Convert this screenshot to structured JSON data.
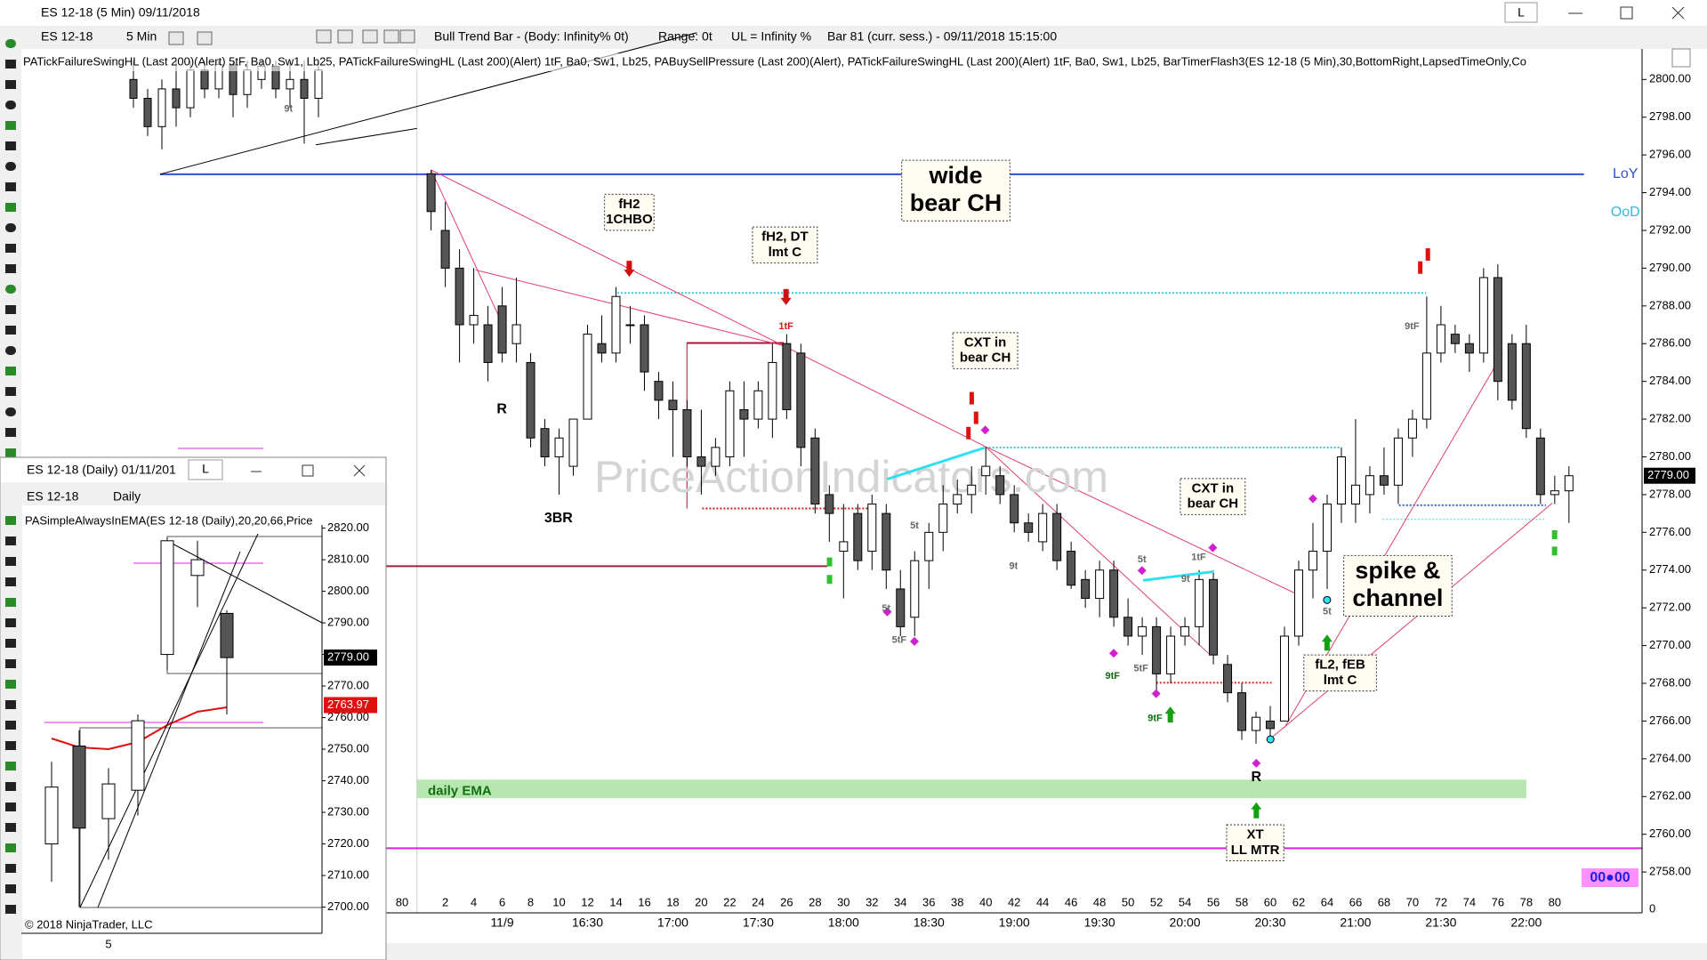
{
  "window": {
    "title": "ES 12-18 (5 Min)  09/11/2018",
    "link": "L"
  },
  "toolbar": {
    "instrument": "ES 12-18",
    "interval": "5 Min",
    "bar_info": "Bull Trend Bar - (Body: Infinity%  0t)",
    "range": "Range: 0t",
    "ul": "UL = Infinity %",
    "bar": "Bar 81 (curr. sess.) - 09/11/2018 15:15:00"
  },
  "indicators": "PATickFailureSwingHL (Last 200)(Alert)  5tF,  Ba0,  Sw1,  Lb25,  PATickFailureSwingHL (Last 200)(Alert)  1tF,  Ba0,  Sw1,  Lb25,  PABuySellPressure (Last 200)(Alert),  PATickFailureSwingHL (Last 200)(Alert)  1tF,  Ba0,  Sw1,  Lb25,  BarTimerFlash3(ES 12-18 (5 Min),30,BottomRight,LapsedTimeOnly,Co",
  "main_chart": {
    "ylim": [
      2758,
      2800
    ],
    "yticks": [
      {
        "value": 2800,
        "label": "2800.00"
      },
      {
        "value": 2798,
        "label": "2798.00"
      },
      {
        "value": 2796,
        "label": "2796.00"
      },
      {
        "value": 2794,
        "label": "2794.00"
      },
      {
        "value": 2792,
        "label": "2792.00"
      },
      {
        "value": 2790,
        "label": "2790.00"
      },
      {
        "value": 2788,
        "label": "2788.00"
      },
      {
        "value": 2786,
        "label": "2786.00"
      },
      {
        "value": 2784,
        "label": "2784.00"
      },
      {
        "value": 2782,
        "label": "2782.00"
      },
      {
        "value": 2780,
        "label": "2780.00"
      },
      {
        "value": 2778,
        "label": "2778.00"
      },
      {
        "value": 2776,
        "label": "2776.00"
      },
      {
        "value": 2774,
        "label": "2774.00"
      },
      {
        "value": 2772,
        "label": "2772.00"
      },
      {
        "value": 2770,
        "label": "2770.00"
      },
      {
        "value": 2768,
        "label": "2768.00"
      },
      {
        "value": 2766,
        "label": "2766.00"
      },
      {
        "value": 2764,
        "label": "2764.00"
      },
      {
        "value": 2762,
        "label": "2762.00"
      },
      {
        "value": 2760,
        "label": "2760.00"
      },
      {
        "value": 2758,
        "label": "2758.00"
      }
    ],
    "bar_labels": [
      "80",
      "2",
      "4",
      "6",
      "8",
      "10",
      "12",
      "14",
      "16",
      "18",
      "20",
      "22",
      "24",
      "26",
      "28",
      "30",
      "32",
      "34",
      "36",
      "38",
      "40",
      "42",
      "44",
      "46",
      "48",
      "50",
      "52",
      "54",
      "56",
      "58",
      "60",
      "62",
      "64",
      "66",
      "68",
      "70",
      "72",
      "74",
      "76",
      "78",
      "80"
    ],
    "time_labels": [
      "11/9",
      "16:30",
      "17:00",
      "17:30",
      "18:00",
      "18:30",
      "19:00",
      "19:30",
      "20:00",
      "20:30",
      "21:00",
      "21:30",
      "22:00"
    ],
    "axis_zero": "0",
    "prior_bars": [
      [
        2800,
        2801,
        2798.5,
        2799
      ],
      [
        2799,
        2799.5,
        2797,
        2797.5
      ],
      [
        2797.5,
        2800,
        2796.3,
        2799.5
      ],
      [
        2799.5,
        2801,
        2797.5,
        2798.5
      ],
      [
        2798.5,
        2801,
        2798,
        2800.5
      ],
      [
        2800.5,
        2801,
        2799,
        2799.5
      ],
      [
        2799.5,
        2801,
        2799,
        2800.8
      ],
      [
        2800.8,
        2801,
        2798,
        2799.2
      ],
      [
        2799.2,
        2801,
        2798.5,
        2800.5
      ],
      [
        2800,
        2801,
        2799.5,
        2800.7
      ],
      [
        2800.7,
        2801,
        2799,
        2799.5
      ],
      [
        2799.5,
        2801,
        2798.5,
        2800
      ],
      [
        2800,
        2801,
        2796.6,
        2799
      ],
      [
        2799,
        2801,
        2798,
        2800.5
      ]
    ],
    "bars": [
      [
        2795,
        2795.2,
        2792,
        2793
      ],
      [
        2792,
        2793.5,
        2789,
        2790
      ],
      [
        2790,
        2791,
        2785,
        2787
      ],
      [
        2787,
        2790,
        2786,
        2787.5
      ],
      [
        2787,
        2788,
        2784,
        2785
      ],
      [
        2788,
        2789,
        2785,
        2785.5
      ],
      [
        2786,
        2789.5,
        2785,
        2787
      ],
      [
        2785,
        2785.5,
        2780.5,
        2781
      ],
      [
        2781.5,
        2782,
        2779.5,
        2780
      ],
      [
        2780,
        2781.5,
        2778,
        2781
      ],
      [
        2779.5,
        2782,
        2779,
        2782
      ],
      [
        2782,
        2787,
        2782,
        2786.5
      ],
      [
        2786,
        2787.5,
        2785,
        2785.5
      ],
      [
        2785.5,
        2789,
        2785,
        2788.5
      ],
      [
        2787,
        2788,
        2786,
        2787
      ],
      [
        2787,
        2787.5,
        2783.5,
        2784.5
      ],
      [
        2784,
        2784.5,
        2782,
        2783
      ],
      [
        2783,
        2784,
        2780,
        2782.5
      ],
      [
        2782.5,
        2783,
        2779.5,
        2780
      ],
      [
        2780,
        2782.5,
        2778,
        2779.5
      ],
      [
        2779.5,
        2781,
        2779,
        2780.5
      ],
      [
        2780,
        2784,
        2779.5,
        2783.5
      ],
      [
        2782.5,
        2784,
        2780,
        2782
      ],
      [
        2782,
        2784,
        2781.5,
        2783.5
      ],
      [
        2782,
        2786,
        2781,
        2785
      ],
      [
        2786,
        2786.5,
        2782,
        2782.5
      ],
      [
        2785.5,
        2786,
        2779.5,
        2780.5
      ],
      [
        2781,
        2781.5,
        2777,
        2777.5
      ],
      [
        2778,
        2778.5,
        2775.5,
        2777
      ],
      [
        2775,
        2777.5,
        2772.5,
        2775.5
      ],
      [
        2777,
        2777.5,
        2774,
        2774.5
      ],
      [
        2775,
        2778,
        2774,
        2777.5
      ],
      [
        2777,
        2777.5,
        2773,
        2774
      ],
      [
        2773,
        2774,
        2770.5,
        2771
      ],
      [
        2771.5,
        2775,
        2770.5,
        2774.5
      ],
      [
        2774.5,
        2776.5,
        2773,
        2776
      ],
      [
        2776,
        2778.5,
        2775,
        2777.5
      ],
      [
        2777.5,
        2778.8,
        2777,
        2778
      ],
      [
        2778,
        2779.5,
        2777,
        2778.5
      ],
      [
        2779,
        2780.5,
        2778,
        2779.5
      ],
      [
        2779,
        2779.5,
        2777.5,
        2778
      ],
      [
        2778,
        2778.5,
        2776,
        2776.5
      ],
      [
        2776.5,
        2777,
        2775.5,
        2776
      ],
      [
        2775.5,
        2777.5,
        2775,
        2777
      ],
      [
        2777,
        2777.5,
        2774,
        2774.5
      ],
      [
        2775,
        2775.5,
        2773,
        2773.2
      ],
      [
        2773.5,
        2774,
        2772,
        2772.5
      ],
      [
        2772.5,
        2774.5,
        2771.5,
        2774
      ],
      [
        2774,
        2774.5,
        2771,
        2771.5
      ],
      [
        2771.5,
        2772.5,
        2770,
        2770.5
      ],
      [
        2770.5,
        2771.5,
        2769.5,
        2771
      ],
      [
        2771,
        2771.5,
        2767.5,
        2768.5
      ],
      [
        2768.5,
        2771,
        2768,
        2770.5
      ],
      [
        2770.5,
        2771.5,
        2770,
        2771
      ],
      [
        2771,
        2774,
        2770,
        2773.5
      ],
      [
        2773.5,
        2774,
        2769,
        2769.5
      ],
      [
        2769,
        2769.5,
        2767,
        2767.5
      ],
      [
        2767.5,
        2768,
        2765,
        2765.5
      ],
      [
        2765.5,
        2766.5,
        2764.8,
        2766.2
      ],
      [
        2766,
        2766.8,
        2765,
        2765.6
      ],
      [
        2766,
        2771,
        2766,
        2770.5
      ],
      [
        2770.5,
        2774.5,
        2770,
        2774
      ],
      [
        2774,
        2776.5,
        2772.5,
        2775
      ],
      [
        2775,
        2778,
        2773,
        2777.5
      ],
      [
        2777.5,
        2780.5,
        2776.5,
        2780
      ],
      [
        2777.5,
        2782,
        2776.5,
        2778.5
      ],
      [
        2778,
        2779.5,
        2777,
        2779
      ],
      [
        2779,
        2780.5,
        2778,
        2778.5
      ],
      [
        2778.5,
        2781.5,
        2777.5,
        2781
      ],
      [
        2781,
        2782.5,
        2780,
        2782
      ],
      [
        2782,
        2788.5,
        2781.5,
        2785.5
      ],
      [
        2785.5,
        2788,
        2785,
        2787
      ],
      [
        2786.5,
        2787,
        2785.5,
        2786
      ],
      [
        2786,
        2786.5,
        2784.5,
        2785.5
      ],
      [
        2785.5,
        2790,
        2785,
        2789.5
      ],
      [
        2789.5,
        2790.2,
        2783,
        2784
      ],
      [
        2786,
        2786.5,
        2782.5,
        2783
      ],
      [
        2786,
        2787,
        2781,
        2781.5
      ],
      [
        2781,
        2781.5,
        2777.5,
        2778
      ],
      [
        2778,
        2779,
        2777.5,
        2778.2
      ],
      [
        2778.2,
        2779.5,
        2776.5,
        2779
      ]
    ],
    "annotations": [
      {
        "lines": [
          "fH2",
          "1CHBO"
        ]
      },
      {
        "lines": [
          "fH2, DT",
          "lmt C"
        ]
      },
      {
        "lines": [
          "wide",
          "bear CH"
        ]
      },
      {
        "lines": [
          "CXT in",
          "bear CH"
        ]
      },
      {
        "lines": [
          "CXT in",
          "bear CH"
        ]
      },
      {
        "lines": [
          "spike &",
          "channel"
        ]
      },
      {
        "lines": [
          "fL2, fEB",
          "lmt C"
        ]
      },
      {
        "lines": [
          "XT",
          "LL MTR"
        ]
      }
    ],
    "labels": [
      "daily EMA",
      "LoY",
      "OoD",
      "R",
      "3BR",
      "R"
    ],
    "small_labels": [
      "9t",
      "1tF",
      "5t",
      "5t",
      "5tF",
      "9t",
      "5t",
      "1tF",
      "9t",
      "5tF",
      "9tF",
      "9tF",
      "9tF",
      "5t"
    ],
    "last_price": "2779.00",
    "timer": "00●00",
    "watermark": "PriceActionIndicators.com"
  },
  "daily_window": {
    "title": "ES 12-18 (Daily)  01/11/201",
    "link": "L",
    "instrument": "ES 12-18",
    "interval": "Daily",
    "indicator": "PASimpleAlwaysInEMA(ES 12-18 (Daily),20,20,66,Price",
    "ylim": [
      2700,
      2820
    ],
    "yticks": [
      {
        "value": 2820,
        "label": "2820.00"
      },
      {
        "value": 2810,
        "label": "2810.00"
      },
      {
        "value": 2800,
        "label": "2800.00"
      },
      {
        "value": 2790,
        "label": "2790.00"
      },
      {
        "value": 2780,
        "label": "2780.00"
      },
      {
        "value": 2770,
        "label": "2770.00"
      },
      {
        "value": 2760,
        "label": "2760.00"
      },
      {
        "value": 2750,
        "label": "2750.00"
      },
      {
        "value": 2740,
        "label": "2740.00"
      },
      {
        "value": 2730,
        "label": "2730.00"
      },
      {
        "value": 2720,
        "label": "2720.00"
      },
      {
        "value": 2710,
        "label": "2710.00"
      },
      {
        "value": 2700,
        "label": "2700.00"
      }
    ],
    "bars": [
      [
        2720,
        2746,
        2708,
        2738
      ],
      [
        2751,
        2756,
        2700,
        2725
      ],
      [
        2728,
        2744,
        2715,
        2739
      ],
      [
        2737,
        2761,
        2729,
        2759
      ],
      [
        2780,
        2817,
        2775,
        2816
      ],
      [
        2805,
        2816,
        2795,
        2810
      ],
      [
        2793,
        2794,
        2761,
        2779
      ]
    ],
    "price_tag": "2779.00",
    "ema_tag": "2763.97",
    "x_label": "5",
    "copyright": "© 2018 NinjaTrader, LLC"
  }
}
